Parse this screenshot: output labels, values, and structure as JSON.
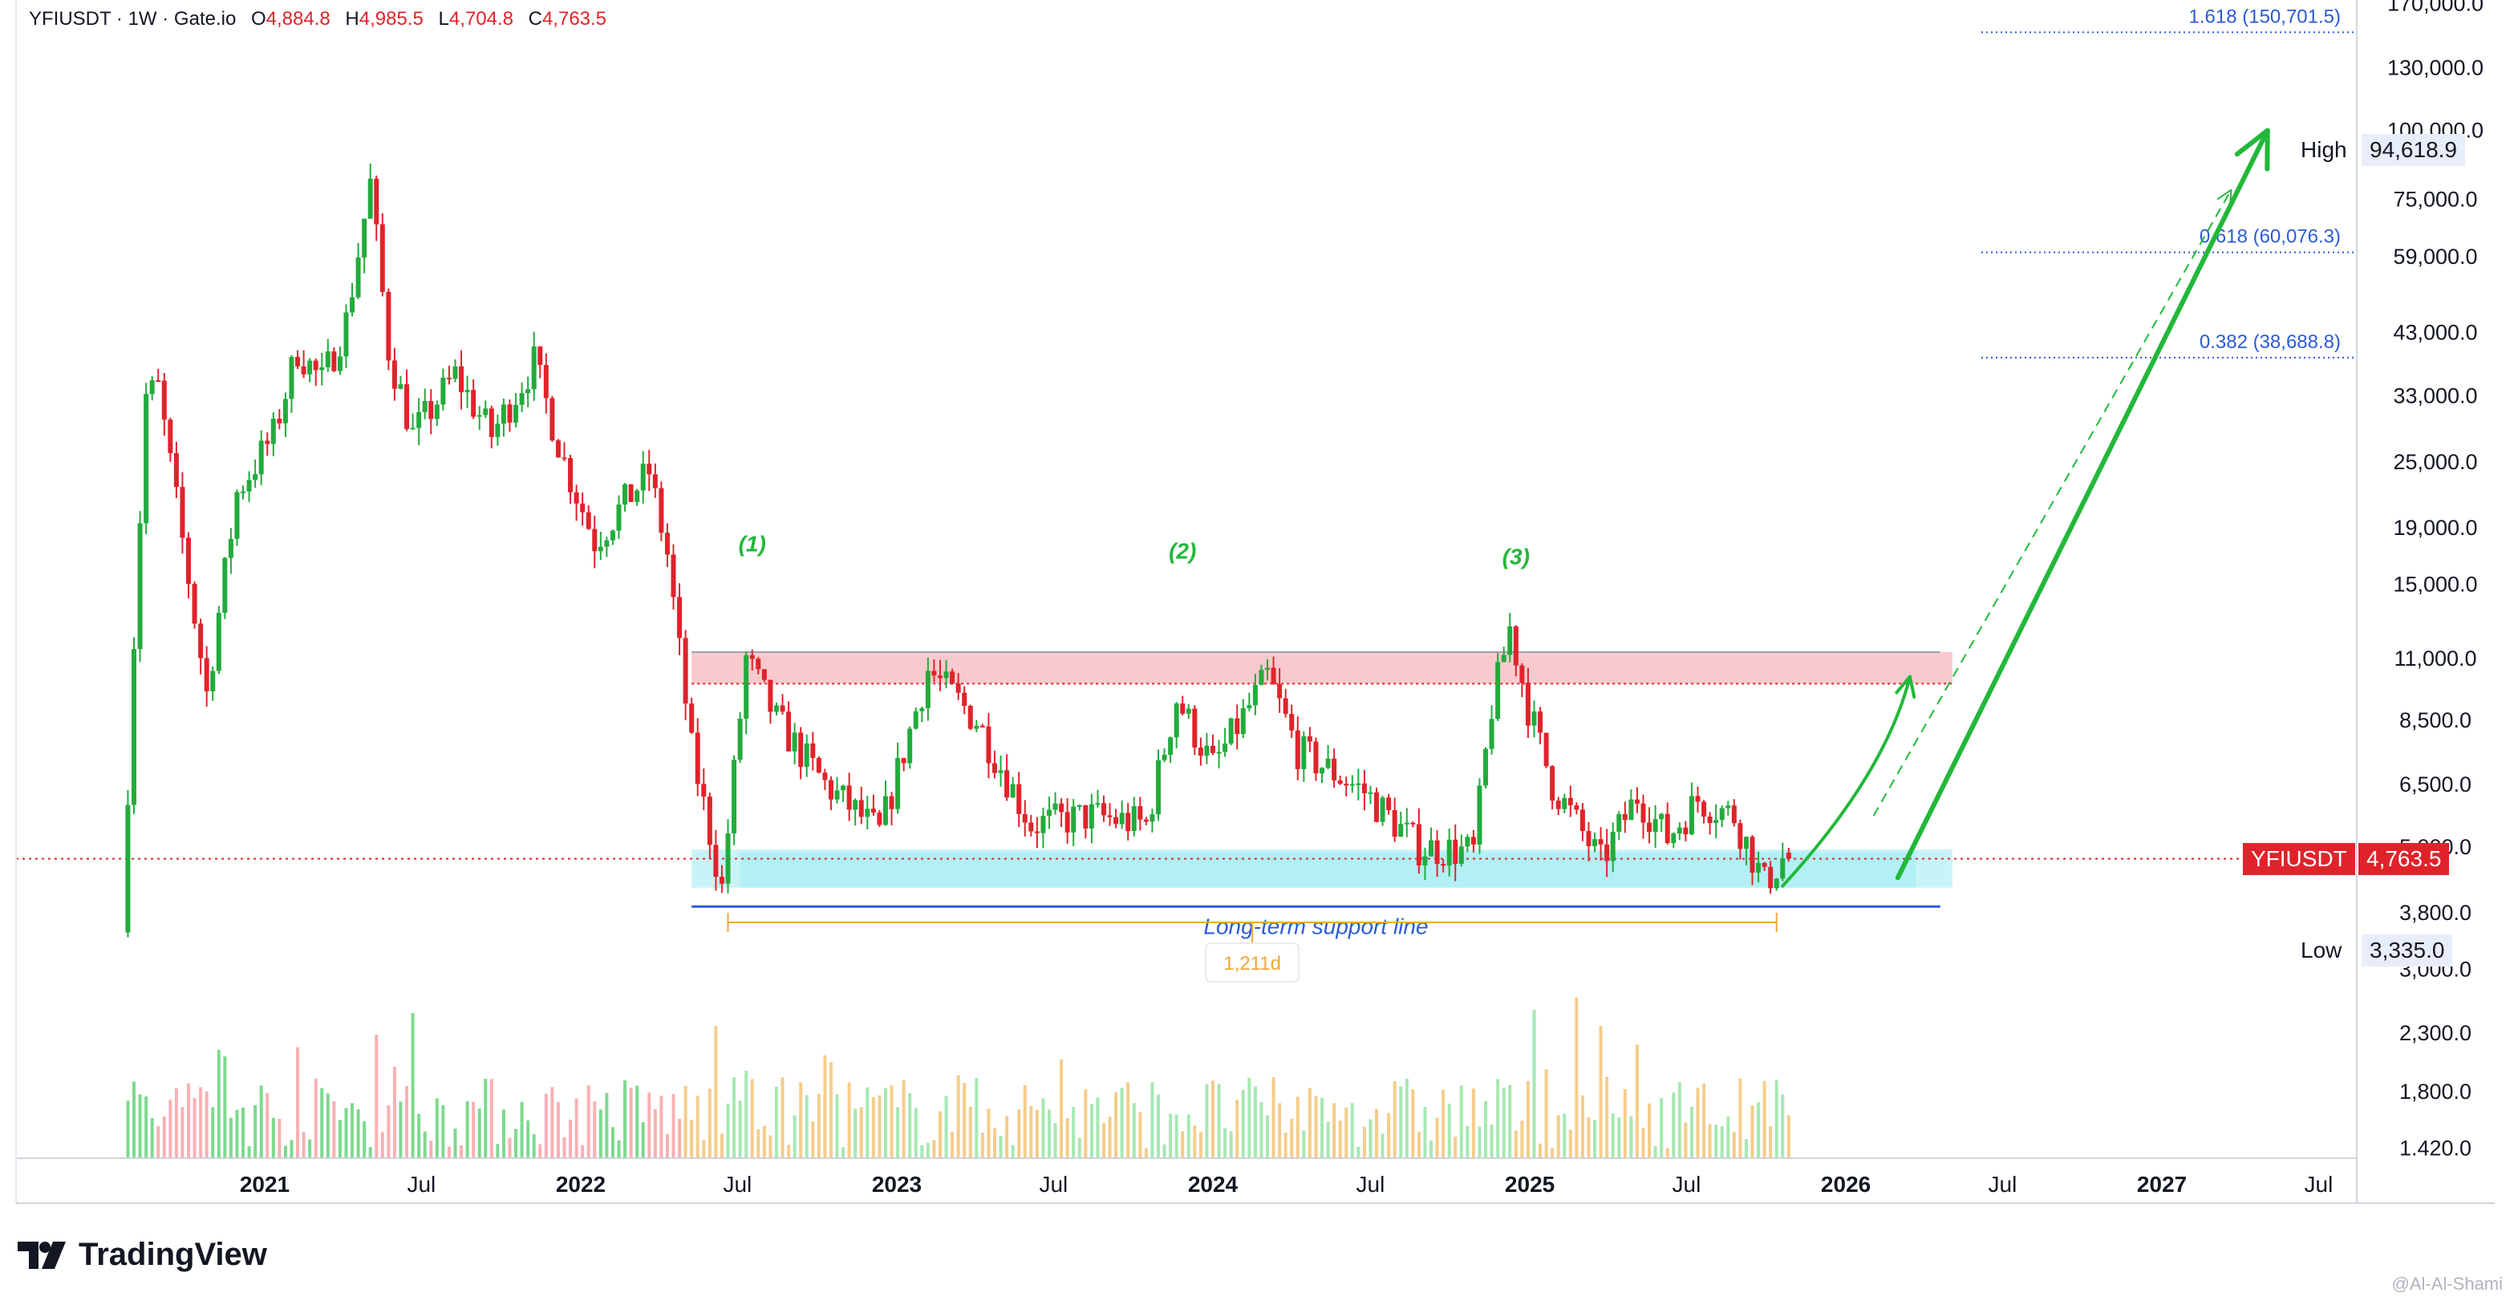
{
  "header": {
    "symbol": "YFIUSDT",
    "interval": "1W",
    "exchange": "Gate.io",
    "open_label": "O",
    "open": "4,884.8",
    "high_label": "H",
    "high": "4,985.5",
    "low_label": "L",
    "low": "4,704.8",
    "close_label": "C",
    "close": "4,763.5"
  },
  "brand": {
    "name": "TradingView"
  },
  "credit": "@Al-Al-Shami",
  "colors": {
    "up": "#22ab3c",
    "down": "#e0232b",
    "accent": "#2b5bd7",
    "projection": "#22b83a",
    "resistance": "#f7b3b8",
    "support": "#a4ecf3",
    "timespan": "#f0a835"
  },
  "chart_data": {
    "type": "candlestick",
    "symbol": "YFIUSDT",
    "y_scale": "log",
    "y_ticks": [
      {
        "v": 170000,
        "t": "170,000.0"
      },
      {
        "v": 130000,
        "t": "130,000.0"
      },
      {
        "v": 100000,
        "t": "100,000.0"
      },
      {
        "v": 75000,
        "t": "75,000.0"
      },
      {
        "v": 59000,
        "t": "59,000.0"
      },
      {
        "v": 43000,
        "t": "43,000.0"
      },
      {
        "v": 33000,
        "t": "33,000.0"
      },
      {
        "v": 25000,
        "t": "25,000.0"
      },
      {
        "v": 19000,
        "t": "19,000.0"
      },
      {
        "v": 15000,
        "t": "15,000.0"
      },
      {
        "v": 11000,
        "t": "11,000.0"
      },
      {
        "v": 8500,
        "t": "8,500.0"
      },
      {
        "v": 6500,
        "t": "6,500.0"
      },
      {
        "v": 5000,
        "t": "5,000.0"
      },
      {
        "v": 3800,
        "t": "3,800.0"
      },
      {
        "v": 3000,
        "t": "3,000.0"
      },
      {
        "v": 2300,
        "t": "2,300.0"
      },
      {
        "v": 1800,
        "t": "1,800.0"
      },
      {
        "v": 1420,
        "t": "1.420.0"
      }
    ],
    "x_ticks": [
      {
        "date": "2021-01-01",
        "label": "2021",
        "bold": true
      },
      {
        "date": "2021-07-01",
        "label": "Jul",
        "bold": false
      },
      {
        "date": "2022-01-01",
        "label": "2022",
        "bold": true
      },
      {
        "date": "2022-07-01",
        "label": "Jul",
        "bold": false
      },
      {
        "date": "2023-01-01",
        "label": "2023",
        "bold": true
      },
      {
        "date": "2023-07-01",
        "label": "Jul",
        "bold": false
      },
      {
        "date": "2024-01-01",
        "label": "2024",
        "bold": true
      },
      {
        "date": "2024-07-01",
        "label": "Jul",
        "bold": false
      },
      {
        "date": "2025-01-01",
        "label": "2025",
        "bold": true
      },
      {
        "date": "2025-07-01",
        "label": "Jul",
        "bold": false
      },
      {
        "date": "2026-01-01",
        "label": "2026",
        "bold": true
      },
      {
        "date": "2026-07-01",
        "label": "Jul",
        "bold": false
      },
      {
        "date": "2027-01-01",
        "label": "2027",
        "bold": true
      },
      {
        "date": "2027-07-01",
        "label": "Jul",
        "bold": false
      }
    ],
    "price_path": [
      [
        "2020-07-27",
        3500
      ],
      [
        "2020-08-10",
        12000
      ],
      [
        "2020-08-24",
        33000
      ],
      [
        "2020-09-07",
        34000
      ],
      [
        "2020-10-05",
        18000
      ],
      [
        "2020-11-02",
        9500
      ],
      [
        "2020-12-07",
        22000
      ],
      [
        "2021-01-18",
        28000
      ],
      [
        "2021-02-15",
        40000
      ],
      [
        "2021-03-15",
        35000
      ],
      [
        "2021-04-12",
        45000
      ],
      [
        "2021-05-10",
        80000
      ],
      [
        "2021-05-31",
        40000
      ],
      [
        "2021-06-28",
        28000
      ],
      [
        "2021-08-16",
        36000
      ],
      [
        "2021-09-27",
        28000
      ],
      [
        "2021-11-15",
        38000
      ],
      [
        "2021-12-20",
        25000
      ],
      [
        "2022-01-24",
        18000
      ],
      [
        "2022-03-28",
        24000
      ],
      [
        "2022-04-18",
        17000
      ],
      [
        "2022-05-16",
        7500
      ],
      [
        "2022-06-20",
        4200
      ],
      [
        "2022-07-18",
        11000
      ],
      [
        "2022-08-22",
        8500
      ],
      [
        "2022-10-17",
        6500
      ],
      [
        "2022-12-19",
        5300
      ],
      [
        "2023-02-13",
        10500
      ],
      [
        "2023-04-10",
        8500
      ],
      [
        "2023-06-12",
        5500
      ],
      [
        "2023-08-21",
        5700
      ],
      [
        "2023-10-23",
        5500
      ],
      [
        "2023-11-27",
        9300
      ],
      [
        "2024-01-08",
        7000
      ],
      [
        "2024-03-11",
        10200
      ],
      [
        "2024-04-15",
        7500
      ],
      [
        "2024-07-01",
        6300
      ],
      [
        "2024-09-02",
        5000
      ],
      [
        "2024-11-04",
        4900
      ],
      [
        "2024-11-25",
        9000
      ],
      [
        "2024-12-16",
        12500
      ],
      [
        "2025-01-06",
        9000
      ],
      [
        "2025-02-03",
        6500
      ],
      [
        "2025-03-31",
        4700
      ],
      [
        "2025-05-12",
        6200
      ],
      [
        "2025-06-16",
        5200
      ],
      [
        "2025-07-21",
        6100
      ],
      [
        "2025-09-01",
        5700
      ],
      [
        "2025-10-06",
        4300
      ],
      [
        "2025-10-27",
        4763.5
      ]
    ],
    "volume_scale": [
      1420,
      3000
    ],
    "high": {
      "label": "High",
      "value": "94,618.9"
    },
    "low": {
      "label": "Low",
      "value": "3,335.0"
    },
    "current": {
      "label": "YFIUSDT",
      "value": "4,763.5",
      "price": 4763.5
    },
    "fib_levels": [
      {
        "label": "1.618 (150,701.5)",
        "price": 150701.5
      },
      {
        "label": "0.618 (60,076.3)",
        "price": 60076.3
      },
      {
        "label": "0.382 (38,688.8)",
        "price": 38688.8
      }
    ],
    "resistance_zone": {
      "from": "2022-05-09",
      "to": "2026-04-20",
      "top": 11300,
      "bottom": 9900,
      "to_extended": "2026-05-04"
    },
    "support_zone": {
      "from": "2022-05-09",
      "to": "2026-05-04",
      "top": 4950,
      "bottom": 4220
    },
    "support_line": {
      "label": "Long-term support line",
      "from": "2022-05-09",
      "to": "2026-04-20",
      "price": 3900
    },
    "time_span": {
      "label": "1,211d",
      "from": "2022-06-20",
      "to": "2025-10-13",
      "price": 3650
    },
    "waves": [
      {
        "label": "(1)",
        "date": "2022-07-18",
        "price": 17200
      },
      {
        "label": "(2)",
        "date": "2023-11-27",
        "price": 16700
      },
      {
        "label": "(3)",
        "date": "2024-12-16",
        "price": 16300
      }
    ],
    "projections": [
      {
        "style": "curve",
        "points": [
          [
            "2025-10-20",
            4250
          ],
          [
            "2026-02-16",
            6800
          ],
          [
            "2026-03-16",
            10200
          ]
        ]
      },
      {
        "style": "dashed",
        "points": [
          [
            "2026-02-02",
            5700
          ],
          [
            "2027-03-22",
            78000
          ]
        ]
      },
      {
        "style": "solid",
        "points": [
          [
            "2026-03-02",
            4400
          ],
          [
            "2027-05-03",
            100000
          ]
        ]
      }
    ]
  }
}
